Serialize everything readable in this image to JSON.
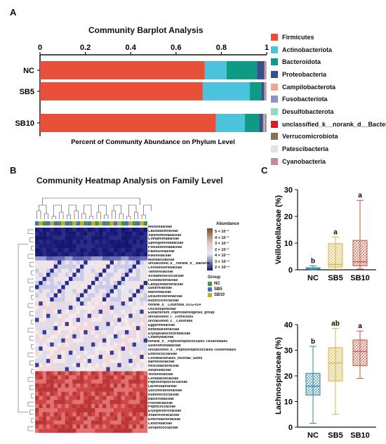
{
  "panel_labels": [
    "A",
    "B",
    "C"
  ],
  "colors": {
    "Firmicutes": "#e8503a",
    "Actinobacteriota": "#4cc3dc",
    "Bacteroidota": "#0f9a86",
    "Proteobacteria": "#3a4f8c",
    "Campilobacterota": "#f2a68e",
    "Fusobacteriota": "#8a93c6",
    "Desulfobacterota": "#95d6c5",
    "unclassified_k__norank_d__Bacteria": "#d21e24",
    "Verrucomicrobiota": "#8c6f56",
    "Patescibacteria": "#e0e2e8",
    "Cyanobacteria": "#c09090",
    "group_NC": "#3e9a3e",
    "group_SB5": "#3e75c6",
    "group_SB10": "#c3b01c"
  },
  "chart_data": [
    {
      "type": "bar",
      "orientation": "horizontal-stacked",
      "title": "Community Barplot Analysis",
      "xlabel": "Percent of Community Abundance on Phylum Level",
      "xlim": [
        0,
        1
      ],
      "xticks": [
        "0",
        "0.2",
        "0.4",
        "0.6",
        "0.8",
        "1"
      ],
      "categories": [
        "NC",
        "SB5",
        "SB10"
      ],
      "legend_position": "right",
      "series": [
        {
          "name": "Firmicutes",
          "values": [
            0.727,
            0.718,
            0.776
          ]
        },
        {
          "name": "Actinobacteriota",
          "values": [
            0.096,
            0.207,
            0.128
          ]
        },
        {
          "name": "Bacteroidota",
          "values": [
            0.135,
            0.052,
            0.063
          ]
        },
        {
          "name": "Proteobacteria",
          "values": [
            0.032,
            0.012,
            0.017
          ]
        },
        {
          "name": "Campilobacterota",
          "values": [
            0.002,
            0.002,
            0.002
          ]
        },
        {
          "name": "Fusobacteriota",
          "values": [
            0.002,
            0.003,
            0.004
          ]
        },
        {
          "name": "Desulfobacterota",
          "values": [
            0.002,
            0.002,
            0.004
          ]
        },
        {
          "name": "unclassified_k__norank_d__Bacteria",
          "values": [
            0.001,
            0.001,
            0.002
          ]
        },
        {
          "name": "Verrucomicrobiota",
          "values": [
            0.001,
            0.001,
            0.002
          ]
        },
        {
          "name": "Patescibacteria",
          "values": [
            0.001,
            0.001,
            0.001
          ]
        },
        {
          "name": "Cyanobacteria",
          "values": [
            0.001,
            0.001,
            0.001
          ]
        }
      ]
    },
    {
      "type": "heatmap",
      "title": "Community Heatmap Analysis on Family Level",
      "legend_title": "Abundance",
      "legend_ticks": [
        "5 × 10⁻¹",
        "4 × 10⁻¹",
        "3 × 10⁻¹",
        "2 × 10⁻¹"
      ],
      "legend_labels": [
        "5 × 10⁻¹",
        "4 × 10⁻¹",
        "3 × 10⁻¹",
        "2 × 10⁻¹",
        "4 × 10⁻⁴",
        "3 × 10⁻⁴",
        "2 × 10⁻⁴"
      ],
      "group_legend_title": "Group",
      "groups": [
        "NC",
        "SB5",
        "SB10"
      ],
      "column_groups": [
        "SB5",
        "SB10",
        "NC",
        "SB5",
        "SB10",
        "SB5",
        "NC",
        "SB10",
        "SB5",
        "NC",
        "SB10",
        "SB5",
        "SB10",
        "NC",
        "SB5",
        "SB10",
        "NC",
        "SB10",
        "SB5",
        "NC",
        "SB10",
        "SB5",
        "SB10",
        "NC",
        "SB5",
        "SB10",
        "NC",
        "SB5",
        "SB10",
        "NC"
      ],
      "rows": [
        "Moraxellaceae",
        "Caulobacteraceae",
        "Xanthomonadaceae",
        "Comamonadaceae",
        "Sphingomonadaceae",
        "Pseudomonadaceae",
        "Pasteurellaceae",
        "Rikenellaceae",
        "Muribaculaceae",
        "unclassified_k__norank_d__Bacteria",
        "Christensenellaceae",
        "Tannerellaceae",
        "Acidaminococcaceae",
        "Fusobacteriaceae",
        "Campylobacteraceae",
        "Sutterellaceae",
        "Marinifilaceae",
        "Desulfovibrionaceae",
        "Butyricicoccaceae",
        "norank_o__Clostridia_UCG-014",
        "Oscillospiraceae",
        "Eubacterium_coprostanoligenes_group",
        "unclassified_f__Firmicutes",
        "unclassified_c__Clostridia",
        "Eggerthellaceae",
        "Bifidobacteriaceae",
        "Erysipelatoclostridiaceae",
        "Chlamydiaceae",
        "norank_o__Peptostreptococcales-Tissierellales",
        "Selenomonadaceae",
        "unclassified_o__Peptostreptococcales-Tissierellales",
        "Enterococcaceae",
        "Coriobacteriales_Incertae_Sedis",
        "Barnesiellaceae",
        "Helicobacteraceae",
        "Atopobiaceae",
        "Veillonellaceae",
        "Coriobacteriaceae",
        "Peptostreptococcaceae",
        "Lachnospiraceae",
        "Succinivibrionaceae",
        "Ruminococcaceae",
        "Bacteroidaceae",
        "Prevotellaceae",
        "Peptococcaceae",
        "Erysipelotrichaceae",
        "Anaerovoracaceae",
        "Enterobacteriaceae",
        "Clostridiaceae",
        "Streptococcaceae"
      ],
      "row_band": [
        0,
        0,
        0,
        0,
        0,
        0,
        0,
        1,
        2,
        2,
        2,
        2,
        2,
        2,
        2,
        2,
        2,
        2,
        3,
        3,
        3,
        3,
        3,
        3,
        3,
        3,
        3,
        3,
        3,
        3,
        3,
        3,
        3,
        3,
        3,
        4,
        4,
        4,
        4,
        4,
        4,
        4,
        4,
        4,
        4,
        4,
        4,
        4,
        4,
        4
      ]
    },
    {
      "type": "box",
      "ylabel": "Veillonellaceae (%)",
      "categories": [
        "NC",
        "SB5",
        "SB10"
      ],
      "ylim": [
        0,
        30
      ],
      "yticks": [
        0,
        10,
        20,
        30
      ],
      "boxes": [
        {
          "group": "NC",
          "min": 0.05,
          "q1": 0.2,
          "median": 0.4,
          "q3": 0.8,
          "max": 1.5,
          "label": "b",
          "color": "#2e8aa6"
        },
        {
          "group": "SB5",
          "min": 0.2,
          "q1": 1.0,
          "median": 2.0,
          "q3": 9.8,
          "max": 12.3,
          "label": "a",
          "color": "#d8b545"
        },
        {
          "group": "SB10",
          "min": 0.3,
          "q1": 1.5,
          "median": 3.0,
          "q3": 11.0,
          "max": 26.0,
          "label": "a",
          "color": "#c2533e"
        }
      ]
    },
    {
      "type": "box",
      "ylabel": "Lachnospiraceae (%)",
      "categories": [
        "NC",
        "SB5",
        "SB10"
      ],
      "ylim": [
        0,
        40
      ],
      "yticks": [
        0,
        10,
        20,
        30,
        40
      ],
      "boxes": [
        {
          "group": "NC",
          "min": 1.5,
          "q1": 12.5,
          "median": 16.0,
          "q3": 21.0,
          "max": 31.5,
          "label": "b",
          "color": "#2e8aa6"
        },
        {
          "group": "SB5",
          "min": 5.0,
          "q1": 18.0,
          "median": 25.0,
          "q3": 31.0,
          "max": 38.5,
          "label": "ab",
          "color": "#d8b545"
        },
        {
          "group": "SB10",
          "min": 19.0,
          "q1": 24.0,
          "median": 29.5,
          "q3": 34.0,
          "max": 37.5,
          "label": "a",
          "color": "#c2533e"
        }
      ]
    }
  ]
}
